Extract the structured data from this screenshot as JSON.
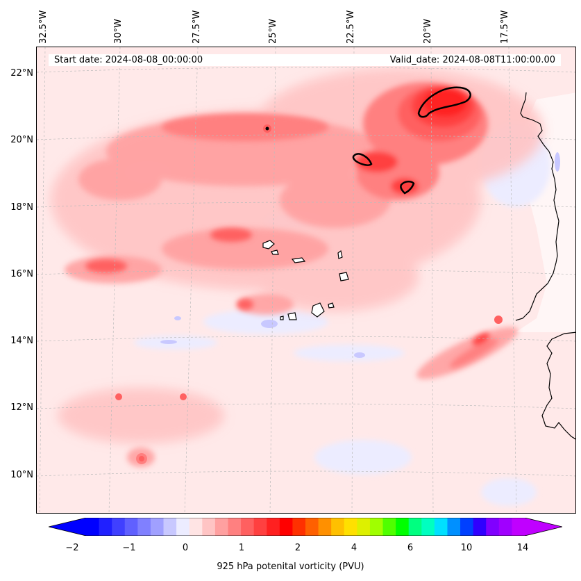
{
  "map": {
    "start_label": "Start date: 2024-08-08_00:00:00",
    "valid_label": "Valid_date: 2024-08-08T11:00:00.00",
    "lon_labels": [
      "32.5°W",
      "30°W",
      "27.5°W",
      "25°W",
      "22.5°W",
      "20°W",
      "17.5°W"
    ],
    "lat_labels": [
      "22°N",
      "20°N",
      "18°N",
      "16°N",
      "14°N",
      "12°N",
      "10°N"
    ],
    "field": "925 hPa potential vorticity",
    "coastline_color": "#000000",
    "land_fill": "#fff0f0"
  },
  "colorbar": {
    "label": "925 hPa potenital vorticity (PVU)",
    "ticks": [
      "−2",
      "−1",
      "0",
      "1",
      "2",
      "4",
      "6",
      "10",
      "14"
    ],
    "extend": "both",
    "colors": [
      "#0000ff",
      "#2020ff",
      "#4040ff",
      "#6060ff",
      "#8080ff",
      "#a0a0ff",
      "#c8c8ff",
      "#ececff",
      "#ffe4e4",
      "#ffc4c4",
      "#ffa0a0",
      "#ff8080",
      "#ff6060",
      "#ff4040",
      "#ff2020",
      "#ff0000",
      "#ff3000",
      "#ff6000",
      "#ff9000",
      "#ffc000",
      "#ffe000",
      "#ddf000",
      "#a0ff00",
      "#50ff00",
      "#00ff00",
      "#00ff80",
      "#00ffc0",
      "#00e0ff",
      "#0090ff",
      "#0040ff",
      "#3000ff",
      "#8000ff",
      "#a000ff",
      "#c000ff"
    ],
    "under_color": "#0000ff",
    "over_color": "#c000ff"
  },
  "features": {
    "contour_color": "#000000"
  }
}
